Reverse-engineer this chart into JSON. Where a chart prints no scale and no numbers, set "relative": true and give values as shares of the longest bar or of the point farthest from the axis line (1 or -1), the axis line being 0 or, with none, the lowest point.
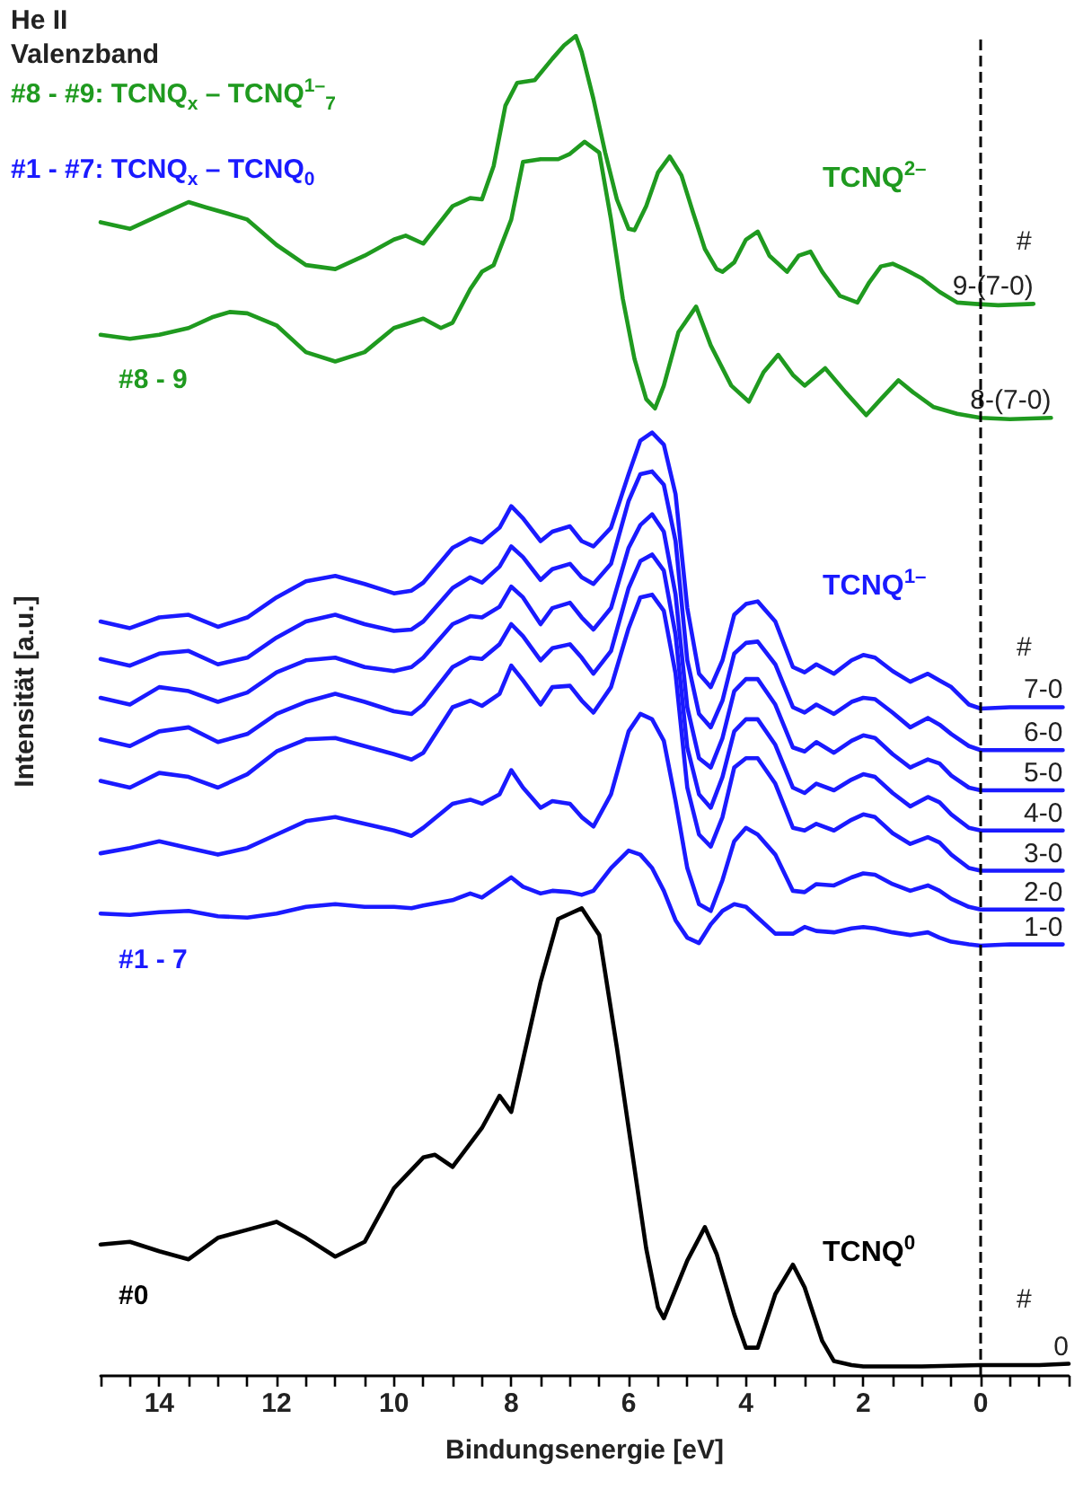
{
  "chart_data": {
    "type": "line",
    "title": "He II",
    "subtitle": "Valenzband",
    "xlabel": "Bindungsenergie [eV]",
    "ylabel": "Intensität [a.u.]",
    "relative": true,
    "xlim": [
      15,
      -1.5
    ],
    "xticks": [
      {
        "value": 15,
        "label": null
      },
      {
        "value": 14.5,
        "label": null
      },
      14,
      {
        "value": 13.5,
        "label": null
      },
      {
        "value": 13,
        "label": null
      },
      {
        "value": 12.5,
        "label": null
      },
      12,
      {
        "value": 11.5,
        "label": null
      },
      {
        "value": 11,
        "label": null
      },
      {
        "value": 10.5,
        "label": null
      },
      10,
      {
        "value": 9.5,
        "label": null
      },
      {
        "value": 9,
        "label": null
      },
      {
        "value": 8.5,
        "label": null
      },
      8,
      {
        "value": 7.5,
        "label": null
      },
      {
        "value": 7,
        "label": null
      },
      {
        "value": 6.5,
        "label": null
      },
      6,
      {
        "value": 5.5,
        "label": null
      },
      {
        "value": 5,
        "label": null
      },
      {
        "value": 4.5,
        "label": null
      },
      4,
      {
        "value": 3.5,
        "label": null
      },
      {
        "value": 3,
        "label": null
      },
      {
        "value": 2.5,
        "label": null
      },
      2,
      {
        "value": 1.5,
        "label": null
      },
      {
        "value": 1,
        "label": null
      },
      {
        "value": 0.5,
        "label": null
      },
      0,
      {
        "value": -0.5,
        "label": null
      },
      {
        "value": -1,
        "label": null
      },
      {
        "value": -1.5,
        "label": null
      }
    ],
    "annotations": [
      "#8 - #9: TCNQ$_{x}$ – TCNQ$^{1–}$$_{7}$",
      "#1 - #7: TCNQ$_{x}$ – TCNQ$_{0}$",
      "TCNQ$^{2–}$",
      "#8 - 9",
      "TCNQ$^{1–}$",
      "#1 - 7",
      "TCNQ$^{0}$",
      "#0",
      "#",
      "#",
      "#"
    ],
    "ref_lines": [
      {
        "axis": "x",
        "value": 0,
        "line_style": "dashed",
        "color": "#000000"
      }
    ],
    "series": [
      {
        "name": "9-(7-0)",
        "color": "#1f9a1f",
        "x": [
          15,
          14.5,
          14,
          13.5,
          13.2,
          12.8,
          12.5,
          12,
          11.5,
          11,
          10.5,
          10,
          9.8,
          9.5,
          9,
          8.7,
          8.5,
          8.3,
          8.1,
          7.9,
          7.6,
          7.3,
          7.1,
          6.9,
          6.8,
          6.6,
          6.4,
          6.2,
          6.0,
          5.9,
          5.7,
          5.5,
          5.3,
          5.1,
          4.9,
          4.7,
          4.5,
          4.4,
          4.2,
          4.0,
          3.8,
          3.6,
          3.3,
          3.1,
          2.9,
          2.7,
          2.4,
          2.1,
          1.9,
          1.7,
          1.5,
          1.3,
          1.0,
          0.7,
          0.4,
          0.1,
          -0.3,
          -0.9
        ],
        "values": [
          0.861,
          0.856,
          0.866,
          0.876,
          0.872,
          0.867,
          0.863,
          0.844,
          0.829,
          0.826,
          0.836,
          0.848,
          0.851,
          0.845,
          0.873,
          0.879,
          0.878,
          0.903,
          0.948,
          0.965,
          0.967,
          0.983,
          0.993,
          1.0,
          0.988,
          0.953,
          0.913,
          0.878,
          0.856,
          0.855,
          0.873,
          0.898,
          0.91,
          0.896,
          0.868,
          0.841,
          0.826,
          0.824,
          0.831,
          0.848,
          0.854,
          0.836,
          0.824,
          0.836,
          0.839,
          0.824,
          0.806,
          0.801,
          0.816,
          0.828,
          0.83,
          0.826,
          0.819,
          0.809,
          0.801,
          0.8,
          0.799,
          0.8
        ]
      },
      {
        "name": "8-(7-0)",
        "color": "#1f9a1f",
        "x": [
          15,
          14.5,
          14,
          13.5,
          13.1,
          12.8,
          12.5,
          12,
          11.5,
          11,
          10.5,
          10,
          9.5,
          9.2,
          9,
          8.7,
          8.5,
          8.3,
          8,
          7.8,
          7.5,
          7.2,
          7,
          6.75,
          6.5,
          6.3,
          6.1,
          5.9,
          5.7,
          5.55,
          5.4,
          5.15,
          4.85,
          4.6,
          4.25,
          3.95,
          3.7,
          3.45,
          3.2,
          3.0,
          2.65,
          2.3,
          1.95,
          1.7,
          1.4,
          1.15,
          0.8,
          0.4,
          0,
          -0.5,
          -1.2
        ],
        "values": [
          0.777,
          0.774,
          0.777,
          0.782,
          0.79,
          0.794,
          0.793,
          0.784,
          0.764,
          0.757,
          0.764,
          0.782,
          0.789,
          0.782,
          0.786,
          0.811,
          0.824,
          0.829,
          0.863,
          0.906,
          0.908,
          0.908,
          0.912,
          0.921,
          0.913,
          0.863,
          0.804,
          0.759,
          0.729,
          0.722,
          0.739,
          0.779,
          0.798,
          0.769,
          0.739,
          0.727,
          0.749,
          0.762,
          0.747,
          0.739,
          0.752,
          0.734,
          0.717,
          0.729,
          0.743,
          0.734,
          0.723,
          0.718,
          0.715,
          0.714,
          0.715
        ]
      },
      {
        "name": "7-0",
        "color": "#1a1aff",
        "x": [
          15,
          14.5,
          14,
          13.5,
          13,
          12.5,
          12,
          11.5,
          11,
          10.5,
          10,
          9.7,
          9.5,
          9,
          8.7,
          8.5,
          8.2,
          8,
          7.8,
          7.5,
          7.3,
          7,
          6.8,
          6.6,
          6.3,
          6,
          5.8,
          5.6,
          5.4,
          5.2,
          5,
          4.8,
          4.6,
          4.4,
          4.2,
          4,
          3.8,
          3.5,
          3.2,
          3,
          2.8,
          2.5,
          2.2,
          2,
          1.8,
          1.5,
          1.2,
          0.9,
          0.7,
          0.5,
          0.2,
          0,
          -0.5,
          -1,
          -1.4
        ],
        "values": [
          0.563,
          0.558,
          0.566,
          0.568,
          0.559,
          0.566,
          0.581,
          0.593,
          0.597,
          0.591,
          0.584,
          0.586,
          0.592,
          0.618,
          0.625,
          0.622,
          0.633,
          0.649,
          0.64,
          0.623,
          0.63,
          0.634,
          0.623,
          0.619,
          0.633,
          0.673,
          0.698,
          0.704,
          0.695,
          0.658,
          0.573,
          0.524,
          0.514,
          0.534,
          0.568,
          0.576,
          0.578,
          0.563,
          0.529,
          0.525,
          0.531,
          0.524,
          0.534,
          0.538,
          0.536,
          0.526,
          0.518,
          0.524,
          0.519,
          0.514,
          0.501,
          0.498,
          0.499,
          0.499,
          0.499
        ]
      },
      {
        "name": "6-0",
        "color": "#1a1aff",
        "x": [
          15,
          14.5,
          14,
          13.5,
          13,
          12.5,
          12,
          11.5,
          11,
          10.5,
          10,
          9.7,
          9.5,
          9,
          8.7,
          8.5,
          8.2,
          8,
          7.8,
          7.5,
          7.3,
          7,
          6.8,
          6.6,
          6.3,
          6,
          5.8,
          5.6,
          5.4,
          5.2,
          5,
          4.8,
          4.6,
          4.4,
          4.2,
          4,
          3.8,
          3.5,
          3.2,
          3,
          2.8,
          2.5,
          2.2,
          2,
          1.8,
          1.5,
          1.2,
          0.9,
          0.7,
          0.5,
          0.2,
          0,
          -0.5,
          -1,
          -1.4
        ],
        "values": [
          0.535,
          0.53,
          0.539,
          0.541,
          0.531,
          0.536,
          0.551,
          0.563,
          0.568,
          0.561,
          0.556,
          0.557,
          0.563,
          0.588,
          0.596,
          0.592,
          0.604,
          0.619,
          0.611,
          0.594,
          0.602,
          0.606,
          0.596,
          0.591,
          0.606,
          0.653,
          0.673,
          0.675,
          0.665,
          0.623,
          0.534,
          0.494,
          0.484,
          0.504,
          0.539,
          0.547,
          0.548,
          0.531,
          0.499,
          0.495,
          0.501,
          0.494,
          0.503,
          0.506,
          0.505,
          0.495,
          0.484,
          0.491,
          0.486,
          0.479,
          0.47,
          0.467,
          0.467,
          0.467,
          0.467
        ]
      },
      {
        "name": "5-0",
        "color": "#1a1aff",
        "x": [
          15,
          14.5,
          14,
          13.5,
          13,
          12.5,
          12,
          11.5,
          11,
          10.5,
          10,
          9.7,
          9.5,
          9,
          8.7,
          8.5,
          8.2,
          8,
          7.8,
          7.5,
          7.3,
          7,
          6.8,
          6.6,
          6.3,
          6,
          5.8,
          5.6,
          5.4,
          5.2,
          5,
          4.8,
          4.6,
          4.4,
          4.2,
          4,
          3.8,
          3.5,
          3.2,
          3,
          2.8,
          2.5,
          2.2,
          2,
          1.8,
          1.5,
          1.2,
          0.9,
          0.7,
          0.5,
          0.2,
          0,
          -0.5,
          -1,
          -1.4
        ],
        "values": [
          0.506,
          0.501,
          0.514,
          0.511,
          0.503,
          0.51,
          0.525,
          0.534,
          0.536,
          0.529,
          0.526,
          0.529,
          0.536,
          0.561,
          0.567,
          0.566,
          0.574,
          0.589,
          0.581,
          0.561,
          0.573,
          0.577,
          0.566,
          0.557,
          0.573,
          0.618,
          0.635,
          0.643,
          0.63,
          0.583,
          0.499,
          0.461,
          0.454,
          0.476,
          0.511,
          0.52,
          0.52,
          0.501,
          0.469,
          0.466,
          0.473,
          0.465,
          0.474,
          0.478,
          0.476,
          0.464,
          0.454,
          0.46,
          0.457,
          0.448,
          0.439,
          0.437,
          0.437,
          0.437,
          0.437
        ]
      },
      {
        "name": "4-0",
        "color": "#1a1aff",
        "x": [
          15,
          14.5,
          14,
          13.5,
          13,
          12.5,
          12,
          11.5,
          11,
          10.5,
          10,
          9.7,
          9.5,
          9,
          8.7,
          8.5,
          8.2,
          8,
          7.8,
          7.5,
          7.3,
          7,
          6.8,
          6.6,
          6.3,
          6,
          5.8,
          5.6,
          5.4,
          5.2,
          5,
          4.8,
          4.6,
          4.4,
          4.2,
          4,
          3.8,
          3.5,
          3.2,
          3,
          2.8,
          2.5,
          2.2,
          2,
          1.8,
          1.5,
          1.2,
          0.9,
          0.7,
          0.5,
          0.2,
          0,
          -0.5,
          -1,
          -1.4
        ],
        "values": [
          0.475,
          0.47,
          0.481,
          0.484,
          0.473,
          0.479,
          0.494,
          0.503,
          0.509,
          0.503,
          0.496,
          0.494,
          0.501,
          0.529,
          0.536,
          0.535,
          0.546,
          0.561,
          0.552,
          0.534,
          0.543,
          0.546,
          0.536,
          0.524,
          0.541,
          0.588,
          0.608,
          0.613,
          0.601,
          0.553,
          0.469,
          0.434,
          0.424,
          0.447,
          0.481,
          0.49,
          0.49,
          0.471,
          0.439,
          0.435,
          0.442,
          0.437,
          0.445,
          0.449,
          0.447,
          0.435,
          0.425,
          0.432,
          0.428,
          0.419,
          0.409,
          0.407,
          0.407,
          0.407,
          0.407
        ]
      },
      {
        "name": "3-0",
        "color": "#1a1aff",
        "x": [
          15,
          14.5,
          14,
          13.5,
          13,
          12.5,
          12,
          11.5,
          11,
          10.5,
          10,
          9.7,
          9.5,
          9,
          8.7,
          8.5,
          8.2,
          8,
          7.8,
          7.5,
          7.3,
          7,
          6.8,
          6.6,
          6.3,
          6,
          5.8,
          5.6,
          5.4,
          5.2,
          5,
          4.8,
          4.6,
          4.4,
          4.2,
          4,
          3.8,
          3.5,
          3.2,
          3,
          2.8,
          2.5,
          2.2,
          2,
          1.8,
          1.5,
          1.2,
          0.9,
          0.7,
          0.5,
          0.2,
          0,
          -0.5,
          -1,
          -1.4
        ],
        "values": [
          0.444,
          0.439,
          0.45,
          0.447,
          0.439,
          0.449,
          0.466,
          0.475,
          0.476,
          0.47,
          0.464,
          0.46,
          0.465,
          0.499,
          0.504,
          0.5,
          0.509,
          0.53,
          0.519,
          0.501,
          0.514,
          0.515,
          0.504,
          0.495,
          0.514,
          0.558,
          0.581,
          0.583,
          0.571,
          0.524,
          0.439,
          0.404,
          0.395,
          0.417,
          0.454,
          0.461,
          0.461,
          0.442,
          0.409,
          0.407,
          0.412,
          0.407,
          0.415,
          0.419,
          0.417,
          0.405,
          0.397,
          0.402,
          0.398,
          0.389,
          0.379,
          0.377,
          0.377,
          0.377,
          0.377
        ]
      },
      {
        "name": "2-0",
        "color": "#1a1aff",
        "x": [
          15,
          14.5,
          14,
          13.5,
          13,
          12.5,
          12,
          11.5,
          11,
          10.5,
          10,
          9.7,
          9.5,
          9,
          8.7,
          8.5,
          8.2,
          8,
          7.8,
          7.5,
          7.3,
          7,
          6.8,
          6.6,
          6.3,
          6,
          5.8,
          5.6,
          5.4,
          5.2,
          5,
          4.8,
          4.6,
          4.4,
          4.2,
          4,
          3.8,
          3.5,
          3.2,
          3,
          2.8,
          2.5,
          2.2,
          2,
          1.8,
          1.5,
          1.2,
          0.9,
          0.7,
          0.5,
          0.2,
          0,
          -0.5,
          -1,
          -1.4
        ],
        "values": [
          0.39,
          0.394,
          0.399,
          0.394,
          0.389,
          0.394,
          0.404,
          0.414,
          0.417,
          0.412,
          0.407,
          0.403,
          0.409,
          0.427,
          0.43,
          0.427,
          0.434,
          0.452,
          0.439,
          0.424,
          0.429,
          0.427,
          0.417,
          0.41,
          0.434,
          0.481,
          0.494,
          0.49,
          0.474,
          0.429,
          0.379,
          0.352,
          0.347,
          0.37,
          0.399,
          0.409,
          0.404,
          0.389,
          0.362,
          0.361,
          0.367,
          0.366,
          0.372,
          0.375,
          0.374,
          0.367,
          0.362,
          0.366,
          0.362,
          0.356,
          0.35,
          0.348,
          0.348,
          0.348,
          0.348
        ]
      },
      {
        "name": "1-0",
        "color": "#1a1aff",
        "x": [
          15,
          14.5,
          14,
          13.5,
          13,
          12.5,
          12,
          11.5,
          11,
          10.5,
          10,
          9.7,
          9.5,
          9,
          8.7,
          8.5,
          8.2,
          8,
          7.8,
          7.5,
          7.3,
          7,
          6.8,
          6.6,
          6.3,
          6,
          5.8,
          5.6,
          5.4,
          5.2,
          5,
          4.8,
          4.6,
          4.4,
          4.2,
          4,
          3.8,
          3.5,
          3.2,
          3,
          2.8,
          2.5,
          2.2,
          2,
          1.8,
          1.5,
          1.2,
          0.9,
          0.7,
          0.5,
          0.2,
          0,
          -0.5,
          -1,
          -1.4
        ],
        "values": [
          0.345,
          0.344,
          0.346,
          0.347,
          0.343,
          0.342,
          0.345,
          0.35,
          0.352,
          0.35,
          0.35,
          0.349,
          0.351,
          0.355,
          0.36,
          0.357,
          0.366,
          0.372,
          0.365,
          0.36,
          0.362,
          0.361,
          0.359,
          0.362,
          0.379,
          0.392,
          0.389,
          0.379,
          0.362,
          0.34,
          0.327,
          0.323,
          0.337,
          0.347,
          0.352,
          0.35,
          0.342,
          0.33,
          0.33,
          0.335,
          0.332,
          0.331,
          0.334,
          0.335,
          0.334,
          0.331,
          0.329,
          0.331,
          0.327,
          0.324,
          0.322,
          0.321,
          0.322,
          0.322,
          0.322
        ]
      },
      {
        "name": "0",
        "color": "#000000",
        "x": [
          15,
          14.5,
          14,
          13.5,
          13,
          12.5,
          12,
          11.5,
          11,
          10.5,
          10,
          9.5,
          9.3,
          9,
          8.5,
          8.2,
          8,
          7.5,
          7.2,
          7,
          6.8,
          6.5,
          6.2,
          6,
          5.7,
          5.5,
          5.4,
          5,
          4.7,
          4.5,
          4.2,
          4,
          3.8,
          3.5,
          3.2,
          3,
          2.7,
          2.5,
          2.2,
          2,
          1,
          0,
          -1,
          -1.5
        ],
        "values": [
          0.098,
          0.1,
          0.093,
          0.087,
          0.103,
          0.109,
          0.115,
          0.103,
          0.089,
          0.1,
          0.14,
          0.163,
          0.165,
          0.156,
          0.185,
          0.209,
          0.197,
          0.294,
          0.341,
          0.345,
          0.349,
          0.329,
          0.245,
          0.185,
          0.095,
          0.051,
          0.043,
          0.086,
          0.111,
          0.091,
          0.046,
          0.021,
          0.021,
          0.061,
          0.083,
          0.066,
          0.026,
          0.011,
          0.008,
          0.007,
          0.007,
          0.008,
          0.008,
          0.009
        ]
      }
    ]
  }
}
